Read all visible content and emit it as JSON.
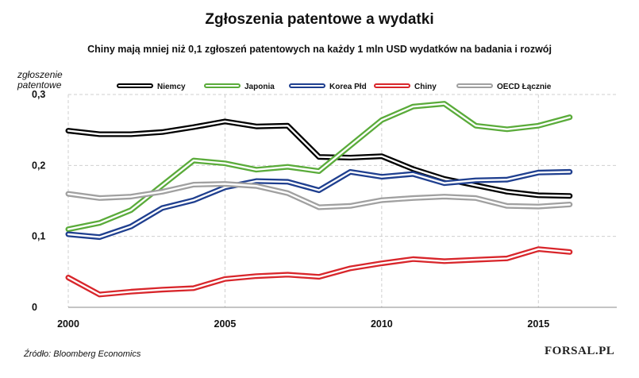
{
  "chart_data": {
    "type": "line",
    "title": "Zgłoszenia patentowe a wydatki",
    "subtitle": "Chiny mają mniej niż 0,1 zgłoszeń patentowych na każdy 1 mln USD wydatków na badania i rozwój",
    "ylabel": "zgłoszenie patentowe",
    "xlabel": "",
    "xlim": [
      2000,
      2017.5
    ],
    "ylim": [
      0,
      0.3
    ],
    "x_ticks": [
      "2000",
      "2005",
      "2010",
      "2015"
    ],
    "x_tick_values": [
      2000,
      2005,
      2010,
      2015
    ],
    "y_ticks": [
      "0",
      "0,1",
      "0,2",
      "0,3"
    ],
    "y_tick_values": [
      0,
      0.1,
      0.2,
      0.3
    ],
    "grid": true,
    "legend_position": "top",
    "x": [
      2000,
      2001,
      2002,
      2003,
      2004,
      2005,
      2006,
      2007,
      2008,
      2009,
      2010,
      2011,
      2012,
      2013,
      2014,
      2015,
      2016
    ],
    "series": [
      {
        "name": "Niemcy",
        "color": "#000000",
        "values": [
          0.249,
          0.244,
          0.244,
          0.247,
          0.254,
          0.262,
          0.255,
          0.256,
          0.212,
          0.211,
          0.213,
          0.195,
          0.181,
          0.172,
          0.163,
          0.158,
          0.157
        ]
      },
      {
        "name": "Japonia",
        "color": "#5aab3a",
        "values": [
          0.11,
          0.119,
          0.137,
          0.172,
          0.207,
          0.203,
          0.194,
          0.198,
          0.192,
          0.228,
          0.264,
          0.283,
          0.287,
          0.256,
          0.251,
          0.256,
          0.268
        ]
      },
      {
        "name": "Korea Płd",
        "color": "#1f3f8f",
        "values": [
          0.103,
          0.099,
          0.114,
          0.14,
          0.151,
          0.169,
          0.178,
          0.177,
          0.165,
          0.191,
          0.184,
          0.188,
          0.175,
          0.179,
          0.18,
          0.19,
          0.191
        ]
      },
      {
        "name": "Chiny",
        "color": "#d8262b",
        "values": [
          0.042,
          0.018,
          0.022,
          0.025,
          0.027,
          0.04,
          0.044,
          0.046,
          0.043,
          0.055,
          0.062,
          0.068,
          0.065,
          0.067,
          0.069,
          0.082,
          0.078
        ]
      },
      {
        "name": "OECD Łącznie",
        "color": "#a0a0a0",
        "values": [
          0.16,
          0.154,
          0.156,
          0.163,
          0.173,
          0.174,
          0.171,
          0.161,
          0.141,
          0.143,
          0.151,
          0.154,
          0.156,
          0.154,
          0.143,
          0.142,
          0.145
        ]
      }
    ]
  },
  "source": "Źródło: Bloomberg Economics",
  "brand": "FORSAL.PL"
}
